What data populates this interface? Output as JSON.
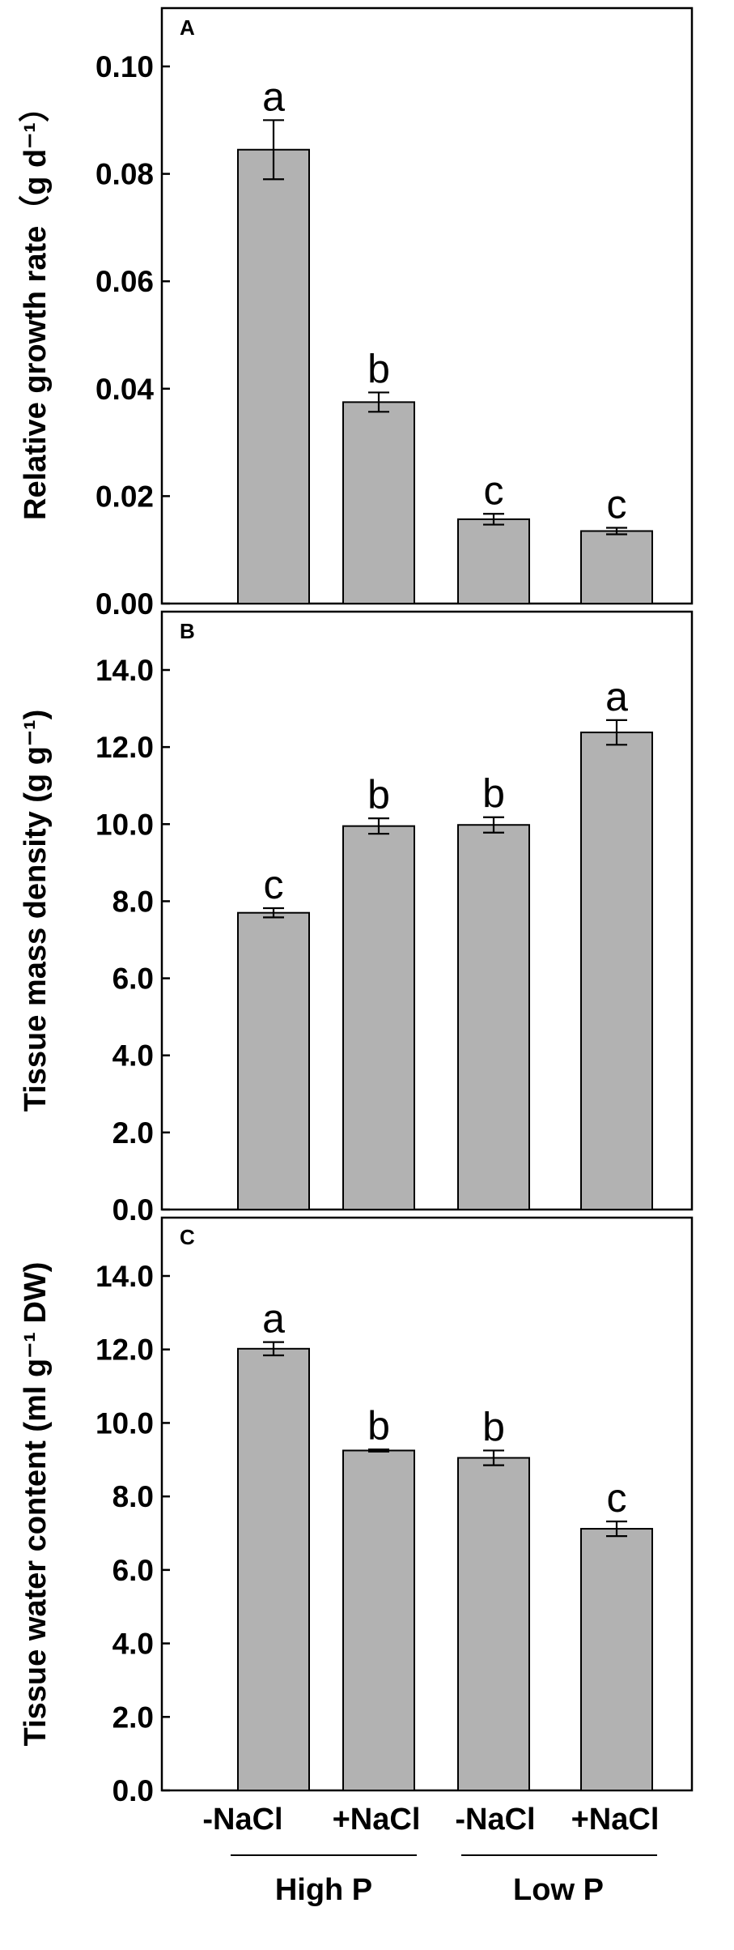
{
  "colors": {
    "bar_fill": "#b2b2b2",
    "bar_stroke": "#000000",
    "background": "#ffffff"
  },
  "categories": [
    "-NaCl",
    "+NaCl",
    "-NaCl",
    "+NaCl"
  ],
  "groups": [
    {
      "label": "High P",
      "members": [
        0,
        1
      ]
    },
    {
      "label": "Low P",
      "members": [
        2,
        3
      ]
    }
  ],
  "chart_data": [
    {
      "type": "bar",
      "panel": "A",
      "ylabel": "Relative growth rate（g d⁻¹）",
      "ylim": [
        0,
        0.1
      ],
      "yticks": [
        "0.00",
        "0.02",
        "0.04",
        "0.06",
        "0.08",
        "0.10"
      ],
      "categories": [
        "-NaCl",
        "+NaCl",
        "-NaCl",
        "+NaCl"
      ],
      "values": [
        0.0845,
        0.0375,
        0.0157,
        0.0135
      ],
      "errors": [
        0.0055,
        0.0018,
        0.001,
        0.0006
      ],
      "letters": [
        "a",
        "b",
        "c",
        "c"
      ]
    },
    {
      "type": "bar",
      "panel": "B",
      "ylabel": "Tissue mass density (g g⁻¹)",
      "ylim": [
        0,
        14
      ],
      "yticks": [
        "0.0",
        "2.0",
        "4.0",
        "6.0",
        "8.0",
        "10.0",
        "12.0",
        "14.0"
      ],
      "categories": [
        "-NaCl",
        "+NaCl",
        "-NaCl",
        "+NaCl"
      ],
      "values": [
        7.7,
        9.95,
        9.98,
        12.38
      ],
      "errors": [
        0.12,
        0.2,
        0.2,
        0.32
      ],
      "letters": [
        "c",
        "b",
        "b",
        "a"
      ]
    },
    {
      "type": "bar",
      "panel": "C",
      "ylabel": "Tissue water content (ml g⁻¹ DW)",
      "ylim": [
        0,
        14
      ],
      "yticks": [
        "0.0",
        "2.0",
        "4.0",
        "6.0",
        "8.0",
        "10.0",
        "12.0",
        "14.0"
      ],
      "categories": [
        "-NaCl",
        "+NaCl",
        "-NaCl",
        "+NaCl"
      ],
      "values": [
        12.02,
        9.25,
        9.05,
        7.12
      ],
      "errors": [
        0.18,
        0.03,
        0.2,
        0.2
      ],
      "letters": [
        "a",
        "b",
        "b",
        "c"
      ]
    }
  ]
}
